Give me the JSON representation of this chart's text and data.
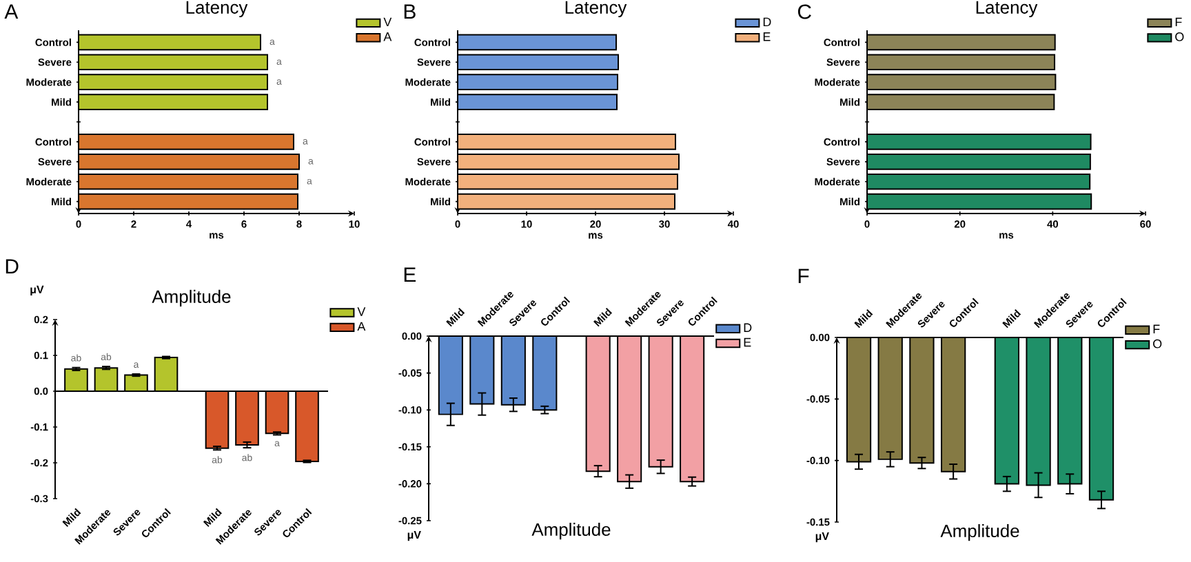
{
  "chart_data": [
    {
      "type": "bar",
      "orientation": "horizontal",
      "title": "Latency",
      "xlabel": "ms",
      "annotations": [
        "A"
      ],
      "categories": [
        "Control",
        "Severe",
        "Moderate",
        "Mild",
        null,
        "Control",
        "Severe",
        "Moderate",
        "Mild"
      ],
      "legend": "top right",
      "xlim": [
        0,
        10
      ],
      "xticks": [
        0,
        2,
        4,
        6,
        8,
        10
      ],
      "series": [
        {
          "name": "V",
          "color": "#b4c42c",
          "values": [
            6.6,
            6.85,
            6.85,
            6.85,
            null,
            null,
            null,
            null,
            null
          ],
          "value_labels": [
            "a",
            "a",
            "a",
            null,
            null,
            null,
            null,
            null,
            null
          ]
        },
        {
          "name": "A",
          "color": "#d9762e",
          "values": [
            null,
            null,
            null,
            null,
            null,
            7.8,
            8.0,
            7.95,
            7.95
          ],
          "value_labels": [
            null,
            null,
            null,
            null,
            null,
            "a",
            "a",
            "a",
            null
          ]
        }
      ]
    },
    {
      "type": "bar",
      "orientation": "horizontal",
      "title": "Latency",
      "xlabel": "ms",
      "annotations": [
        "B"
      ],
      "categories": [
        "Control",
        "Severe",
        "Moderate",
        "Mild",
        null,
        "Control",
        "Severe",
        "Moderate",
        "Mild"
      ],
      "legend": "top right",
      "xlim": [
        0,
        40
      ],
      "xticks": [
        0,
        10,
        20,
        30,
        40
      ],
      "series": [
        {
          "name": "D",
          "color": "#6a94d6",
          "values": [
            23.0,
            23.3,
            23.2,
            23.1,
            null,
            null,
            null,
            null,
            null
          ]
        },
        {
          "name": "E",
          "color": "#f2b07c",
          "values": [
            null,
            null,
            null,
            null,
            null,
            31.6,
            32.1,
            31.9,
            31.5
          ]
        }
      ]
    },
    {
      "type": "bar",
      "orientation": "horizontal",
      "title": "Latency",
      "xlabel": "ms",
      "annotations": [
        "C"
      ],
      "categories": [
        "Control",
        "Severe",
        "Moderate",
        "Mild",
        null,
        "Control",
        "Severe",
        "Moderate",
        "Mild"
      ],
      "legend": "top right",
      "xlim": [
        0,
        60
      ],
      "xticks": [
        0,
        20,
        40,
        60
      ],
      "series": [
        {
          "name": "F",
          "color": "#8c8458",
          "values": [
            40.5,
            40.4,
            40.6,
            40.3,
            null,
            null,
            null,
            null,
            null
          ]
        },
        {
          "name": "O",
          "color": "#1f8a62",
          "values": [
            null,
            null,
            null,
            null,
            null,
            48.2,
            48.1,
            48.0,
            48.3
          ]
        }
      ]
    },
    {
      "type": "bar",
      "title": "Amplitude",
      "ylabel": "μV",
      "annotations": [
        "D"
      ],
      "categories": [
        "Mild",
        "Moderate",
        "Severe",
        "Control",
        "Mild",
        "Moderate",
        "Severe",
        "Control"
      ],
      "legend": "top right",
      "ylim": [
        -0.3,
        0.2
      ],
      "yticks": [
        {
          "value": -0.3,
          "label": "-0.3"
        },
        {
          "value": -0.2,
          "label": "-0.2"
        },
        {
          "value": -0.1,
          "label": "-0.1"
        },
        {
          "value": 0,
          "label": "0.0"
        },
        {
          "value": 0.1,
          "label": "0.1"
        },
        {
          "value": 0.2,
          "label": "0.2"
        }
      ],
      "series": [
        {
          "name": "V",
          "color": "#b4c42c",
          "values": [
            0.062,
            0.065,
            0.045,
            0.094,
            null,
            null,
            null,
            null
          ],
          "errors": [
            0.004,
            0.004,
            0.003,
            0.003,
            null,
            null,
            null,
            null
          ],
          "value_labels": [
            "ab",
            "ab",
            "a",
            null,
            null,
            null,
            null,
            null
          ]
        },
        {
          "name": "A",
          "color": "#d8582a",
          "values": [
            null,
            null,
            null,
            null,
            -0.159,
            -0.15,
            -0.118,
            -0.196
          ],
          "errors": [
            null,
            null,
            null,
            null,
            0.005,
            0.008,
            0.004,
            0.003
          ],
          "value_labels": [
            null,
            null,
            null,
            null,
            "ab",
            "ab",
            "a",
            null
          ]
        }
      ]
    },
    {
      "type": "bar",
      "title": "Amplitude",
      "ylabel": "μV",
      "annotations": [
        "E"
      ],
      "categories": [
        "Mild",
        "Moderate",
        "Severe",
        "Control",
        "Mild",
        "Moderate",
        "Severe",
        "Control"
      ],
      "legend": "top right",
      "ylim": [
        -0.25,
        0
      ],
      "yticks": [
        {
          "value": -0.25,
          "label": "-0.25"
        },
        {
          "value": -0.2,
          "label": "-0.20"
        },
        {
          "value": -0.15,
          "label": "-0.15"
        },
        {
          "value": -0.1,
          "label": "-0.10"
        },
        {
          "value": -0.05,
          "label": "-0.05"
        },
        {
          "value": 0,
          "label": "0.00"
        }
      ],
      "series": [
        {
          "name": "D",
          "color": "#5a88cc",
          "values": [
            -0.106,
            -0.092,
            -0.093,
            -0.1,
            null,
            null,
            null,
            null
          ],
          "errors": [
            0.015,
            0.015,
            0.009,
            0.005,
            null,
            null,
            null,
            null
          ]
        },
        {
          "name": "E",
          "color": "#f2a0a4",
          "values": [
            null,
            null,
            null,
            null,
            -0.183,
            -0.197,
            -0.177,
            -0.197
          ],
          "errors": [
            null,
            null,
            null,
            null,
            0.0075,
            0.009,
            0.009,
            0.006
          ]
        }
      ]
    },
    {
      "type": "bar",
      "title": "Amplitude",
      "ylabel": "μV",
      "annotations": [
        "F"
      ],
      "categories": [
        "Mild",
        "Moderate",
        "Severe",
        "Control",
        "Mild",
        "Moderate",
        "Severe",
        "Control"
      ],
      "legend": "top right",
      "ylim": [
        -0.15,
        0
      ],
      "yticks": [
        {
          "value": -0.15,
          "label": "-0.15"
        },
        {
          "value": -0.1,
          "label": "-0.10"
        },
        {
          "value": -0.05,
          "label": "-0.05"
        },
        {
          "value": 0,
          "label": "0.00"
        }
      ],
      "series": [
        {
          "name": "F",
          "color": "#857a44",
          "values": [
            -0.101,
            -0.099,
            -0.102,
            -0.109,
            null,
            null,
            null,
            null
          ],
          "errors": [
            0.006,
            0.006,
            0.0045,
            0.006,
            null,
            null,
            null,
            null
          ]
        },
        {
          "name": "O",
          "color": "#1f9068",
          "values": [
            null,
            null,
            null,
            null,
            -0.119,
            -0.12,
            -0.119,
            -0.132
          ],
          "errors": [
            null,
            null,
            null,
            null,
            0.006,
            0.01,
            0.008,
            0.007
          ]
        }
      ]
    }
  ]
}
